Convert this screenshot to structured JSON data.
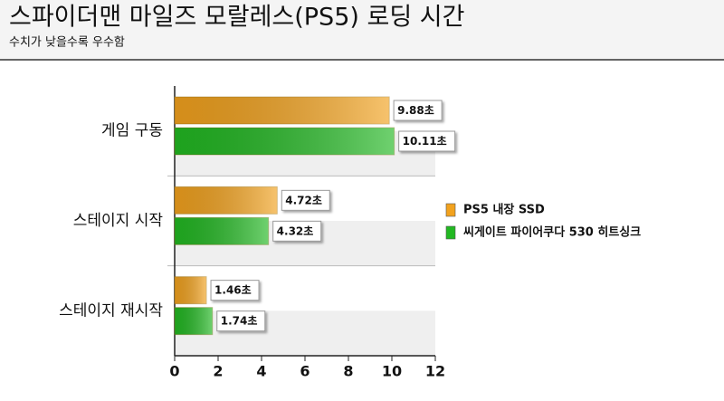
{
  "chart_data": {
    "type": "bar",
    "orientation": "horizontal",
    "title": "스파이더맨 마일즈 모랄레스(PS5) 로딩 시간",
    "subtitle": "수치가 낮을수록 우수함",
    "categories": [
      "게임 구동",
      "스테이지 시작",
      "스테이지 재시작"
    ],
    "series": [
      {
        "name": "PS5 내장 SSD",
        "color": "#f2a21e",
        "values": [
          9.88,
          4.72,
          1.46
        ],
        "value_labels": [
          "9.88초",
          "4.72초",
          "1.46초"
        ]
      },
      {
        "name": "씨게이트 파이어쿠다 530 히트싱크",
        "color": "#22b822",
        "values": [
          10.11,
          4.32,
          1.74
        ],
        "value_labels": [
          "10.11초",
          "4.32초",
          "1.74초"
        ]
      }
    ],
    "xlim": [
      0,
      12
    ],
    "xticks": [
      0,
      2,
      4,
      6,
      8,
      10,
      12
    ],
    "grid": false,
    "legend": "right"
  }
}
